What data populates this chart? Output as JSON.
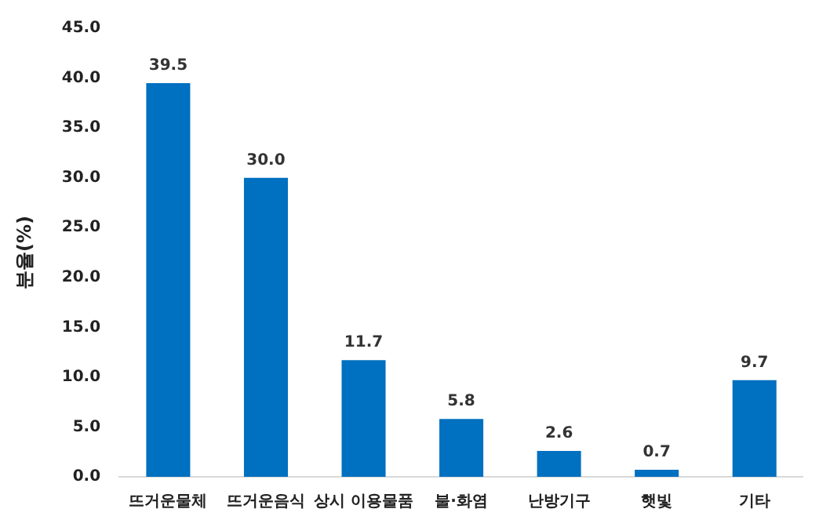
{
  "chart_data": {
    "type": "bar",
    "ylabel": "분율(%)",
    "categories": [
      "뜨거운물체",
      "뜨거운음식",
      "상시 이용물품",
      "불·화염",
      "난방기구",
      "햇빛",
      "기타"
    ],
    "values": [
      39.5,
      30.0,
      11.7,
      5.8,
      2.6,
      0.7,
      9.7
    ],
    "value_labels": [
      "39.5",
      "30.0",
      "11.7",
      "5.8",
      "2.6",
      "0.7",
      "9.7"
    ],
    "color": "#0070c0",
    "ylim": [
      0,
      45
    ],
    "yticks": [
      {
        "value": 0,
        "label": "0.0"
      },
      {
        "value": 5,
        "label": "5.0"
      },
      {
        "value": 10,
        "label": "10.0"
      },
      {
        "value": 15,
        "label": "15.0"
      },
      {
        "value": 20,
        "label": "20.0"
      },
      {
        "value": 25,
        "label": "25.0"
      },
      {
        "value": 30,
        "label": "30.0"
      },
      {
        "value": 35,
        "label": "35.0"
      },
      {
        "value": 40,
        "label": "40.0"
      },
      {
        "value": 45,
        "label": "45.0"
      }
    ],
    "grid": false,
    "legend": false
  }
}
